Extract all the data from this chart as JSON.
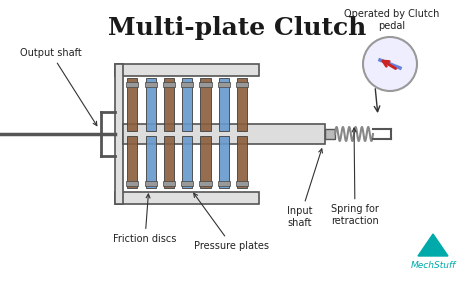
{
  "title": "Multi-plate Clutch",
  "bg_color": "#ffffff",
  "title_color": "#1a1a1a",
  "title_fontsize": 18,
  "labels": {
    "output_shaft": "Output shaft",
    "friction_discs": "Friction discs",
    "pressure_plates": "Pressure plates",
    "input_shaft": "Input\nshaft",
    "spring": "Spring for\nretraction",
    "clutch_pedal": "Operated by Clutch\npedal"
  },
  "housing_color": "#555555",
  "disc_brown_color": "#8B5E3C",
  "disc_blue_color": "#6699cc",
  "shaft_color": "#cccccc",
  "spring_color": "#888888",
  "mechstuff_color": "#00aaaa",
  "arrow_color": "#333333",
  "clutch_circle_color": "#e8e8e8"
}
